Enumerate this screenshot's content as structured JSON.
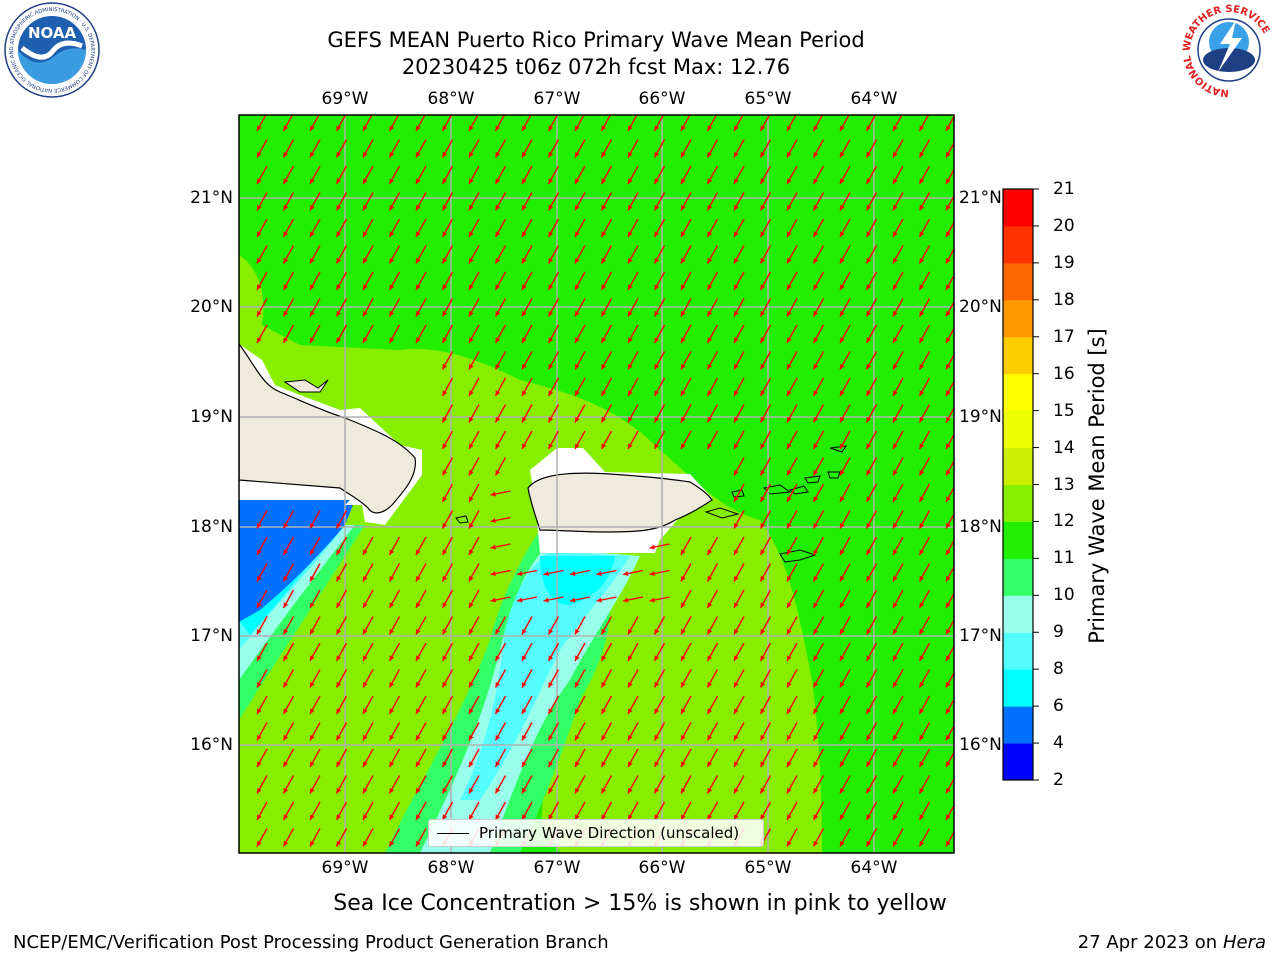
{
  "header": {
    "title_line1": "GEFS MEAN Puerto Rico Primary Wave Mean Period",
    "title_line2": "20230425 t06z 072h fcst   Max: 12.76",
    "noaa_logo_text": "NOAA",
    "noaa_ring_text": "NATIONAL OCEANIC AND ATMOSPHERIC ADMINISTRATION · U.S. DEPARTMENT OF COMMERCE",
    "nws_ring_text": "NATIONAL WEATHER SERVICE"
  },
  "map": {
    "lon_labels": [
      "69°W",
      "68°W",
      "67°W",
      "66°W",
      "65°W",
      "64°W"
    ],
    "lat_labels": [
      "21°N",
      "20°N",
      "19°N",
      "18°N",
      "17°N",
      "16°N"
    ],
    "legend_label": "Primary Wave Direction (unscaled)",
    "arrow_color": "#ff0000",
    "grid_color": "#b0b0b0",
    "land_color": "#efebdc"
  },
  "colorbar": {
    "label": "Primary Wave Mean Period [s]",
    "ticks": [
      "2",
      "4",
      "6",
      "8",
      "9",
      "10",
      "11",
      "12",
      "13",
      "14",
      "15",
      "16",
      "17",
      "18",
      "19",
      "20",
      "21"
    ],
    "colors": [
      "#0000ff",
      "#0070ff",
      "#00ffff",
      "#55ffff",
      "#99ffea",
      "#33ff66",
      "#22ee00",
      "#88ee00",
      "#ccee00",
      "#eeff00",
      "#ffff00",
      "#ffcc00",
      "#ff9900",
      "#ff6600",
      "#ff3300",
      "#ff0000"
    ]
  },
  "footer": {
    "note": "Sea Ice Concentration > 15% is shown in pink to yellow",
    "left": "NCEP/EMC/Verification Post Processing Product Generation Branch",
    "date": "27 Apr 2023 on ",
    "machine": "Hera"
  }
}
